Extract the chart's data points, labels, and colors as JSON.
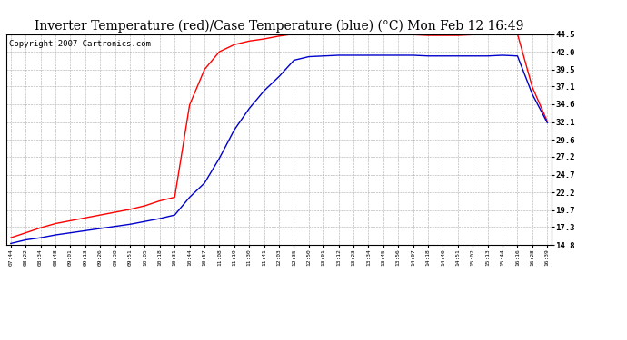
{
  "title": "Inverter Temperature (red)/Case Temperature (blue) (°C) Mon Feb 12 16:49",
  "copyright": "Copyright 2007 Cartronics.com",
  "x_labels": [
    "07:44",
    "08:22",
    "08:34",
    "08:48",
    "09:01",
    "09:13",
    "09:26",
    "09:38",
    "09:51",
    "10:05",
    "10:18",
    "10:31",
    "10:44",
    "10:57",
    "11:08",
    "11:19",
    "11:30",
    "11:41",
    "12:03",
    "12:35",
    "12:50",
    "13:01",
    "13:12",
    "13:23",
    "13:34",
    "13:45",
    "13:56",
    "14:07",
    "14:18",
    "14:40",
    "14:51",
    "15:02",
    "15:13",
    "15:44",
    "16:16",
    "16:28",
    "16:39"
  ],
  "red_values": [
    15.8,
    16.5,
    17.2,
    17.8,
    18.2,
    18.6,
    19.0,
    19.4,
    19.8,
    20.3,
    21.0,
    21.5,
    34.5,
    39.5,
    42.0,
    43.0,
    43.5,
    43.8,
    44.2,
    44.5,
    44.5,
    44.5,
    44.4,
    44.4,
    44.4,
    44.4,
    44.4,
    44.4,
    44.3,
    44.3,
    44.3,
    44.4,
    44.5,
    44.5,
    44.5,
    37.0,
    32.2
  ],
  "blue_values": [
    15.0,
    15.5,
    15.8,
    16.2,
    16.5,
    16.8,
    17.1,
    17.4,
    17.7,
    18.1,
    18.5,
    19.0,
    21.5,
    23.5,
    27.0,
    31.0,
    34.0,
    36.5,
    38.5,
    40.8,
    41.3,
    41.4,
    41.5,
    41.5,
    41.5,
    41.5,
    41.5,
    41.5,
    41.4,
    41.4,
    41.4,
    41.4,
    41.4,
    41.5,
    41.4,
    36.0,
    32.0
  ],
  "y_ticks": [
    14.8,
    17.3,
    19.7,
    22.2,
    24.7,
    27.2,
    29.6,
    32.1,
    34.6,
    37.1,
    39.5,
    42.0,
    44.5
  ],
  "y_min": 14.8,
  "y_max": 44.5,
  "red_color": "#ff0000",
  "blue_color": "#0000cc",
  "bg_color": "#ffffff",
  "plot_bg_color": "#ffffff",
  "grid_color": "#aaaaaa",
  "title_fontsize": 10,
  "copyright_fontsize": 6.5
}
